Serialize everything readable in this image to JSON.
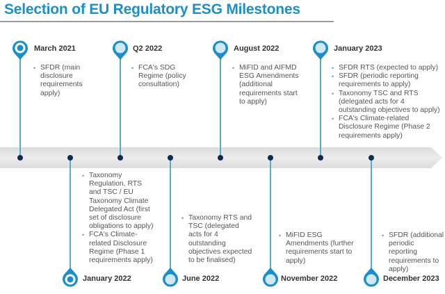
{
  "title": "Selection of EU Regulatory ESG Milestones",
  "colors": {
    "accent": "#1b8fcb",
    "pin_fill_light": "#cfe8f6",
    "stem": "#5aa9cf",
    "dot": "#0f2d4d",
    "band": "#e4e4e4"
  },
  "milestones": [
    {
      "label": "March 2021",
      "side": "above",
      "pin": "filled-center",
      "items": [
        "SFDR (main disclosure requirements apply)"
      ]
    },
    {
      "label": "January 2022",
      "side": "below",
      "pin": "filled-center",
      "items": [
        "Taxonomy Regulation, RTS and TSC / EU Taxonomy Climate Delegated Act  (first set of disclosure obligations to apply)",
        "FCA's Climate-related Disclosure Regime (Phase 1 requirements apply)"
      ]
    },
    {
      "label": "Q2 2022",
      "side": "above",
      "pin": "light",
      "items": [
        "FCA's SDG Regime (policy consultation)"
      ]
    },
    {
      "label": "June 2022",
      "side": "below",
      "pin": "light",
      "items": [
        "Taxonomy RTS and TSC (delegated acts for 4 outstanding objectives expected to be finalised)"
      ]
    },
    {
      "label": "August 2022",
      "side": "above",
      "pin": "light",
      "items": [
        "MiFID and AIFMD ESG Amendments (additional requirements start to apply)"
      ]
    },
    {
      "label": "November 2022",
      "side": "below",
      "pin": "light",
      "items": [
        "MiFID ESG Amendments (further requirements start to apply)"
      ]
    },
    {
      "label": "January 2023",
      "side": "above",
      "pin": "light",
      "items": [
        "SFDR RTS (expected to apply)",
        "SFDR (periodic reporting requirements to apply)",
        "Taxonomy TSC and RTS (delegated acts for 4 outstanding objectives to apply)",
        "FCA's Climate-related Disclosure Regime (Phase 2 requirements apply)"
      ]
    },
    {
      "label": "December 2023",
      "side": "below",
      "pin": "light",
      "items": [
        "SFDR (additional periodic reporting requirements to apply)"
      ]
    }
  ]
}
